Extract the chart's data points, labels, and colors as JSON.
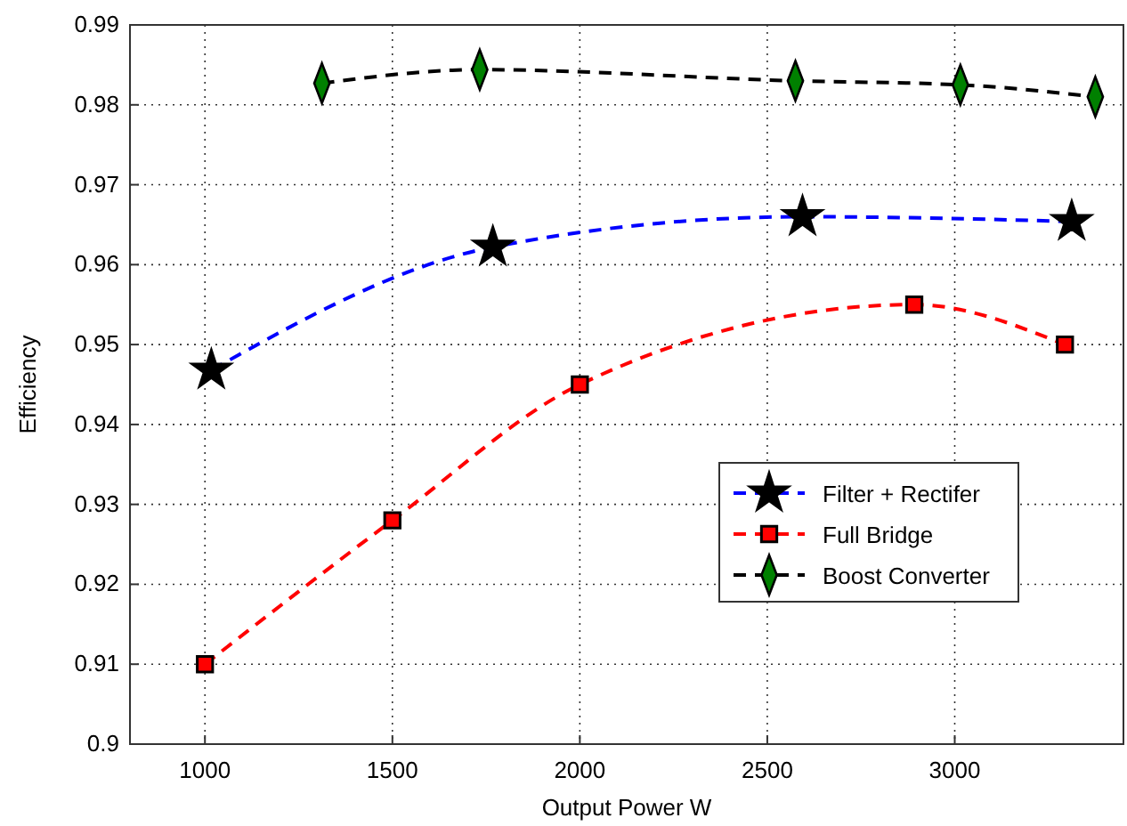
{
  "chart_data": {
    "type": "line",
    "xlabel": "Output Power W",
    "ylabel": "Efficiency",
    "xlim": [
      800,
      3450
    ],
    "xticks": [
      1000,
      1500,
      2000,
      2500,
      3000
    ],
    "ylim": [
      0.9,
      0.99
    ],
    "yticks": [
      0.9,
      0.91,
      0.92,
      0.93,
      0.94,
      0.95,
      0.96,
      0.97,
      0.98,
      0.99
    ],
    "grid": true,
    "legend": "bottom right",
    "line_style": "dashed",
    "series": [
      {
        "name": "Filter + Rectifer",
        "color": "#0000ff",
        "marker": "star",
        "x": [
          1017,
          1768,
          2594,
          3312
        ],
        "values": [
          0.9468,
          0.9622,
          0.966,
          0.9654
        ]
      },
      {
        "name": "Full Bridge",
        "color": "#ff0000",
        "marker": "square",
        "x": [
          1000,
          1500,
          2000,
          2892,
          3294
        ],
        "values": [
          0.91,
          0.928,
          0.945,
          0.955,
          0.95
        ]
      },
      {
        "name": "Boost Converter",
        "color": "#000000",
        "marker": "diamond",
        "x": [
          1312,
          1733,
          2575,
          3015,
          3375
        ],
        "values": [
          0.9827,
          0.9844,
          0.983,
          0.9825,
          0.981
        ]
      }
    ]
  }
}
